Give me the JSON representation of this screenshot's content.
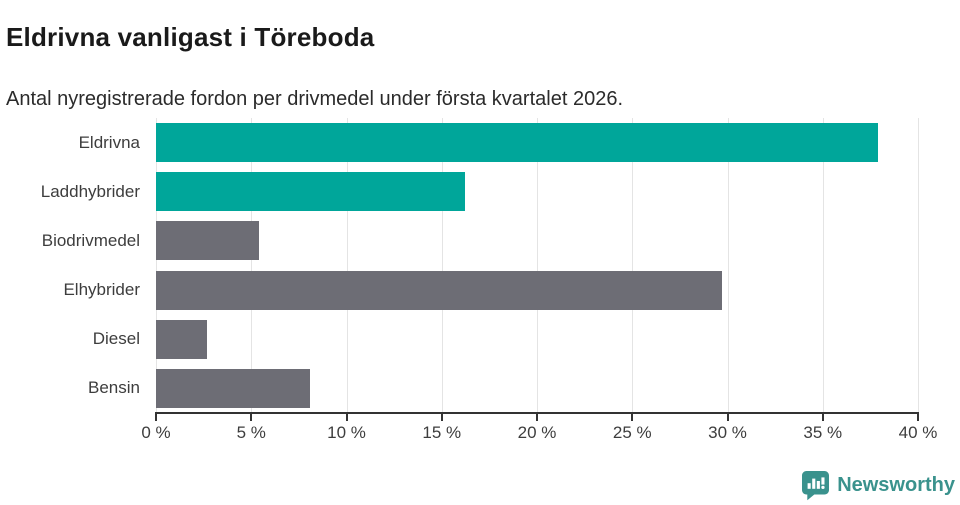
{
  "chart_data": {
    "type": "bar",
    "orientation": "horizontal",
    "title": "Eldrivna vanligast i Töreboda",
    "subtitle": "Antal nyregistrerade fordon per drivmedel under första kvartalet 2026.",
    "categories": [
      "Eldrivna",
      "Laddhybrider",
      "Biodrivmedel",
      "Elhybrider",
      "Diesel",
      "Bensin"
    ],
    "values": [
      37.9,
      16.2,
      5.4,
      29.7,
      2.7,
      8.1
    ],
    "bar_colors": [
      "#00a69a",
      "#00a69a",
      "#6d6d75",
      "#6d6d75",
      "#6d6d75",
      "#6d6d75"
    ],
    "highlight_color": "#00a69a",
    "default_color": "#6d6d75",
    "xlabel": "",
    "ylabel": "",
    "xlim": [
      0,
      40
    ],
    "x_ticks": [
      0,
      5,
      10,
      15,
      20,
      25,
      30,
      35,
      40
    ],
    "tick_suffix": " %",
    "grid": "vertical",
    "gridline_color": "#e4e4e4",
    "axis_color": "#333333",
    "legend": "none"
  },
  "branding": {
    "name": "Newsworthy",
    "logo_icon": "bar-chart-speech-bubble-icon",
    "color": "#3a928d"
  }
}
